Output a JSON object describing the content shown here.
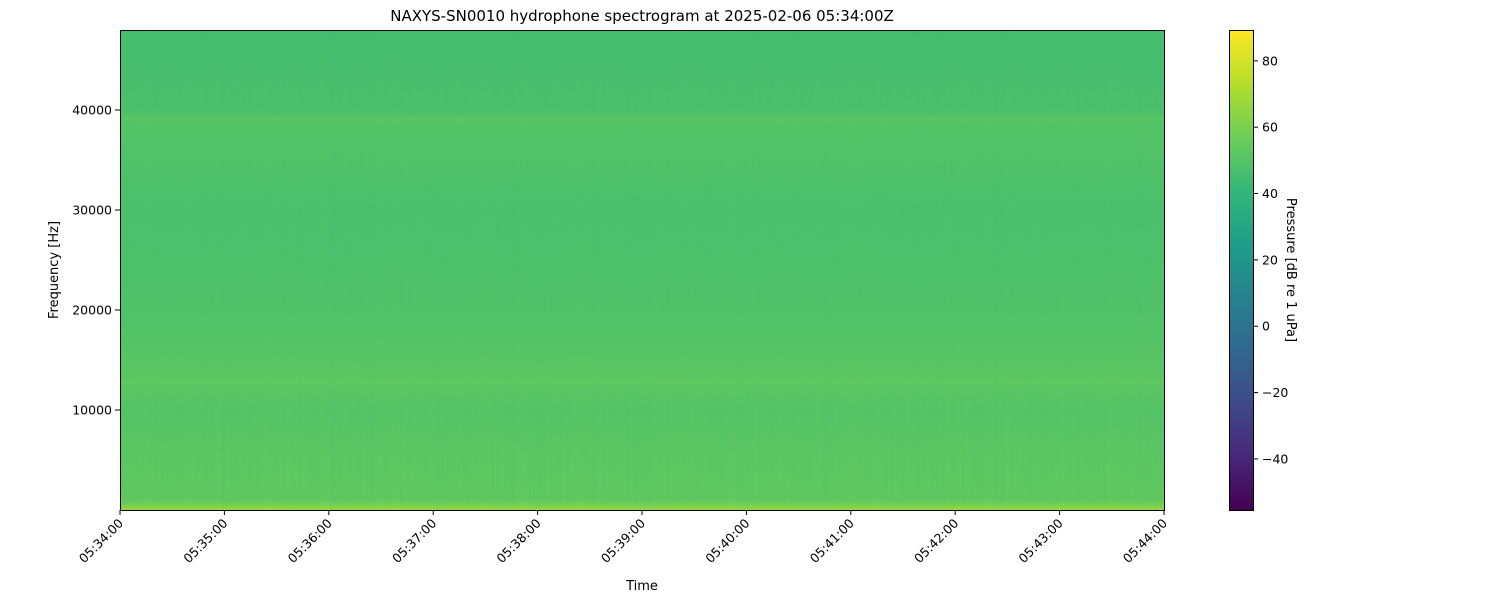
{
  "chart_data": {
    "type": "heatmap",
    "title": "NAXYS-SN0010 hydrophone spectrogram at 2025-02-06 05:34:00Z",
    "xlabel": "Time",
    "ylabel": "Frequency [Hz]",
    "colorbar_label": "Pressure [dB re 1 uPa]",
    "colormap": "viridis",
    "xlim": [
      "05:34:00",
      "05:44:00"
    ],
    "ylim": [
      0,
      48000
    ],
    "clim": [
      -55.4,
      89.3
    ],
    "x_ticks": [
      "05:34:00",
      "05:35:00",
      "05:36:00",
      "05:37:00",
      "05:38:00",
      "05:39:00",
      "05:40:00",
      "05:41:00",
      "05:42:00",
      "05:43:00",
      "05:44:00"
    ],
    "y_ticks": [
      10000,
      20000,
      30000,
      40000
    ],
    "y_tick_labels": [
      "10000",
      "20000",
      "30000",
      "40000"
    ],
    "colorbar_ticks": [
      -40,
      -20,
      0,
      20,
      40,
      60,
      80
    ],
    "colorbar_tick_labels": [
      "−40",
      "−20",
      "0",
      "20",
      "40",
      "60",
      "80"
    ],
    "frequency_profile": {
      "frequency_hz": [
        0,
        500,
        1000,
        5000,
        10000,
        12800,
        20000,
        30000,
        39200,
        40000,
        48000
      ],
      "level_db": [
        66,
        58,
        53,
        52,
        50,
        52,
        48.5,
        47,
        50,
        47,
        45.5
      ]
    },
    "grid": false
  }
}
